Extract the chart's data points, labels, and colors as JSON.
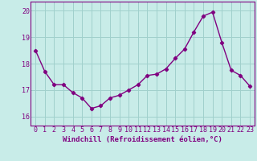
{
  "x": [
    0,
    1,
    2,
    3,
    4,
    5,
    6,
    7,
    8,
    9,
    10,
    11,
    12,
    13,
    14,
    15,
    16,
    17,
    18,
    19,
    20,
    21,
    22,
    23
  ],
  "y": [
    18.5,
    17.7,
    17.2,
    17.2,
    16.9,
    16.7,
    16.3,
    16.4,
    16.7,
    16.8,
    17.0,
    17.2,
    17.55,
    17.6,
    17.8,
    18.2,
    18.55,
    19.2,
    19.8,
    19.95,
    18.8,
    17.75,
    17.55,
    17.15
  ],
  "line_color": "#800080",
  "marker": "D",
  "marker_size": 2.2,
  "line_width": 1.0,
  "background_color": "#c8ece8",
  "grid_color": "#a0d0cc",
  "xlabel": "Windchill (Refroidissement éolien,°C)",
  "ylim": [
    15.65,
    20.35
  ],
  "yticks": [
    16,
    17,
    18,
    19,
    20
  ],
  "xticks": [
    0,
    1,
    2,
    3,
    4,
    5,
    6,
    7,
    8,
    9,
    10,
    11,
    12,
    13,
    14,
    15,
    16,
    17,
    18,
    19,
    20,
    21,
    22,
    23
  ],
  "xlabel_color": "#800080",
  "xlabel_fontsize": 6.5,
  "tick_fontsize": 6.0,
  "tick_color": "#800080",
  "spine_color": "#800080",
  "xlim": [
    -0.5,
    23.5
  ]
}
